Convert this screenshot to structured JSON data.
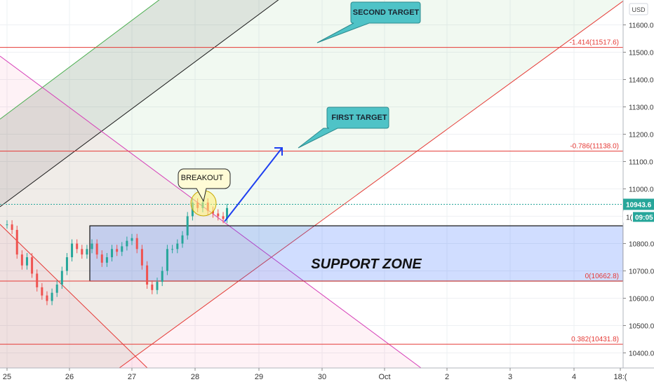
{
  "chart_data": {
    "type": "line",
    "currency": "USD",
    "x_ticks": [
      "25",
      "26",
      "27",
      "28",
      "29",
      "30",
      "Oct",
      "2",
      "3",
      "4",
      "18:("
    ],
    "y_ticks": [
      10400,
      10500,
      10600,
      10700,
      10800,
      10900,
      11000,
      11100,
      11200,
      11300,
      11400,
      11500,
      11600
    ],
    "ylim": [
      10370,
      11650
    ],
    "last_price": "10943.6",
    "countdown": "09:05",
    "countdown_prefix": "1(",
    "fib_levels": [
      {
        "label": "-1.414(11517.6)",
        "value": 11517.6
      },
      {
        "label": "-0.786(11138.0)",
        "value": 11138.0
      },
      {
        "label": "0(10662.8)",
        "value": 10662.8
      },
      {
        "label": "0.382(10431.8)",
        "value": 10431.8
      }
    ],
    "support_zone": {
      "label": "SUPPORT ZONE",
      "top": 10865,
      "bottom": 10662.8
    },
    "annotations": {
      "breakout": "BREAKOUT",
      "first_target": "FIRST TARGET",
      "second_target": "SECOND TARGET"
    },
    "price_series": [
      [
        0,
        10870
      ],
      [
        0.08,
        10850
      ],
      [
        0.16,
        10760
      ],
      [
        0.24,
        10720
      ],
      [
        0.32,
        10750
      ],
      [
        0.4,
        10690
      ],
      [
        0.48,
        10640
      ],
      [
        0.56,
        10610
      ],
      [
        0.64,
        10590
      ],
      [
        0.72,
        10620
      ],
      [
        0.8,
        10650
      ],
      [
        0.88,
        10700
      ],
      [
        0.96,
        10750
      ],
      [
        1.04,
        10800
      ],
      [
        1.12,
        10780
      ],
      [
        1.2,
        10760
      ],
      [
        1.28,
        10780
      ],
      [
        1.36,
        10800
      ],
      [
        1.44,
        10760
      ],
      [
        1.52,
        10730
      ],
      [
        1.6,
        10750
      ],
      [
        1.68,
        10780
      ],
      [
        1.76,
        10770
      ],
      [
        1.84,
        10790
      ],
      [
        1.92,
        10810
      ],
      [
        2.0,
        10820
      ],
      [
        2.08,
        10780
      ],
      [
        2.16,
        10720
      ],
      [
        2.24,
        10650
      ],
      [
        2.32,
        10630
      ],
      [
        2.4,
        10660
      ],
      [
        2.48,
        10700
      ],
      [
        2.56,
        10780
      ],
      [
        2.64,
        10780
      ],
      [
        2.72,
        10800
      ],
      [
        2.8,
        10830
      ],
      [
        2.88,
        10900
      ],
      [
        2.96,
        10950
      ],
      [
        3.04,
        10930
      ],
      [
        3.12,
        10950
      ],
      [
        3.2,
        10920
      ],
      [
        3.28,
        10910
      ],
      [
        3.36,
        10900
      ],
      [
        3.44,
        10890
      ],
      [
        3.5,
        10930
      ]
    ],
    "series": [
      {
        "name": "Price",
        "values_ref": "price_series"
      }
    ]
  }
}
